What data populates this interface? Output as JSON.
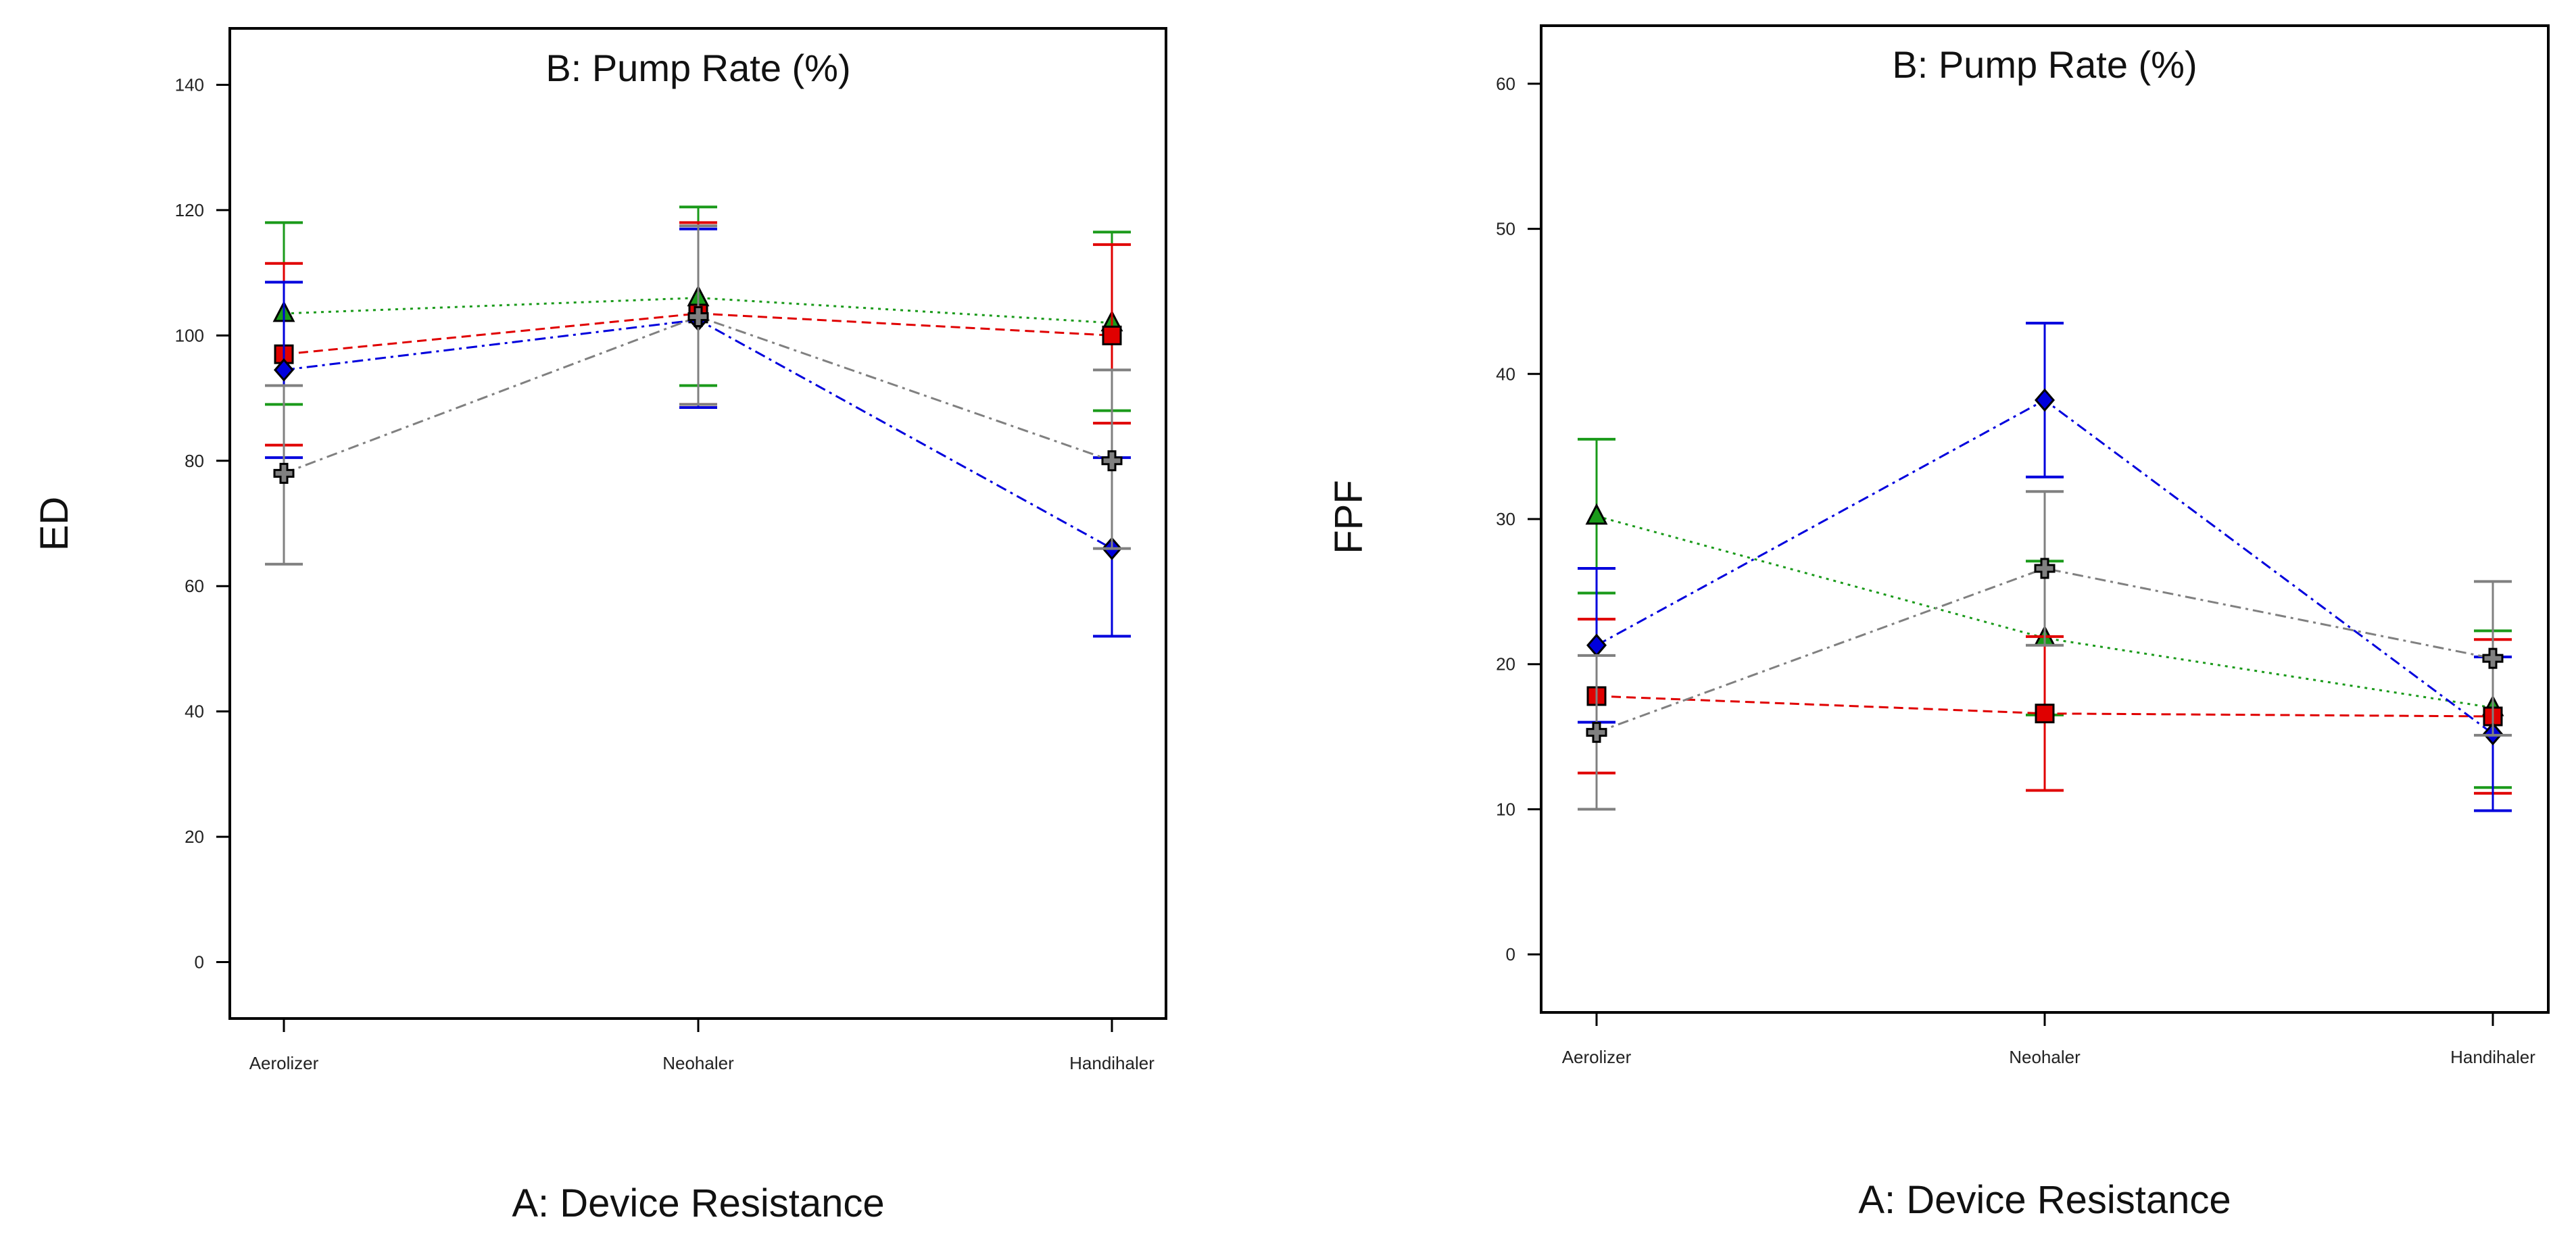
{
  "chart_data": [
    {
      "type": "line",
      "title": "B: Pump Rate (%)",
      "xlabel": "A: Device Resistance",
      "ylabel": "ED",
      "categories": [
        "Aerolizer",
        "Neohaler",
        "Handihaler"
      ],
      "ylim": [
        -9,
        149
      ],
      "yticks": [
        0,
        20,
        40,
        60,
        80,
        100,
        120,
        140
      ],
      "series": [
        {
          "name": "green",
          "color": "#1a9a1a",
          "marker": "triangle",
          "dash": "dot",
          "values": [
            103.5,
            106.0,
            102.0
          ],
          "err_low": [
            89.0,
            92.0,
            88.0
          ],
          "err_high": [
            118.0,
            120.5,
            116.5
          ]
        },
        {
          "name": "red",
          "color": "#e00000",
          "marker": "square",
          "dash": "dash",
          "values": [
            97.0,
            103.5,
            100.0
          ],
          "err_low": [
            82.5,
            89.0,
            86.0
          ],
          "err_high": [
            111.5,
            118.0,
            114.5
          ]
        },
        {
          "name": "blue",
          "color": "#0000dd",
          "marker": "diamond",
          "dash": "dashdot",
          "values": [
            94.5,
            102.5,
            66.0
          ],
          "err_low": [
            80.5,
            88.5,
            52.0
          ],
          "err_high": [
            108.5,
            117.0,
            80.5
          ]
        },
        {
          "name": "gray",
          "color": "#808080",
          "marker": "cross",
          "dash": "dashdot",
          "values": [
            78.0,
            103.0,
            80.0
          ],
          "err_low": [
            63.5,
            89.0,
            66.0
          ],
          "err_high": [
            92.0,
            117.5,
            94.5
          ]
        }
      ]
    },
    {
      "type": "line",
      "title": "B: Pump Rate (%)",
      "xlabel": "A: Device Resistance",
      "ylabel": "FPF",
      "categories": [
        "Aerolizer",
        "Neohaler",
        "Handihaler"
      ],
      "ylim": [
        -4,
        64
      ],
      "yticks": [
        0,
        10,
        20,
        30,
        40,
        50,
        60
      ],
      "series": [
        {
          "name": "green",
          "color": "#1a9a1a",
          "marker": "triangle",
          "dash": "dot",
          "values": [
            30.2,
            21.8,
            17.0
          ],
          "err_low": [
            24.9,
            16.5,
            11.5
          ],
          "err_high": [
            35.5,
            27.1,
            22.3
          ]
        },
        {
          "name": "red",
          "color": "#e00000",
          "marker": "square",
          "dash": "dash",
          "values": [
            17.8,
            16.6,
            16.4
          ],
          "err_low": [
            12.5,
            11.3,
            11.1
          ],
          "err_high": [
            23.1,
            21.9,
            21.7
          ]
        },
        {
          "name": "blue",
          "color": "#0000dd",
          "marker": "diamond",
          "dash": "dashdot",
          "values": [
            21.3,
            38.2,
            15.2
          ],
          "err_low": [
            16.0,
            32.9,
            9.9
          ],
          "err_high": [
            26.6,
            43.5,
            20.5
          ]
        },
        {
          "name": "gray",
          "color": "#808080",
          "marker": "cross",
          "dash": "dashdot",
          "values": [
            15.3,
            26.6,
            20.4
          ],
          "err_low": [
            10.0,
            21.3,
            15.1
          ],
          "err_high": [
            20.6,
            31.9,
            25.7
          ]
        }
      ]
    }
  ]
}
